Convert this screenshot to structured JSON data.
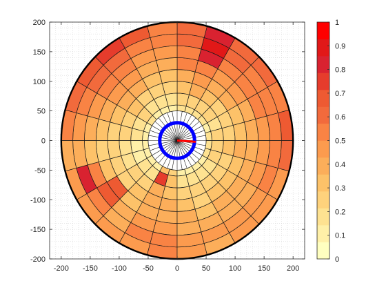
{
  "chart_data": {
    "type": "heatmap",
    "subtype": "polar-grid",
    "title": "",
    "xlabel": "",
    "ylabel": "",
    "xlim": [
      -220,
      220
    ],
    "ylim": [
      -200,
      200
    ],
    "xticks": [
      -200,
      -150,
      -100,
      -50,
      0,
      50,
      100,
      150,
      200
    ],
    "yticks": [
      -200,
      -150,
      -100,
      -50,
      0,
      50,
      100,
      150,
      200
    ],
    "grid": "minor dotted",
    "radial_edges": [
      60,
      80,
      100,
      120,
      140,
      160,
      180,
      200
    ],
    "sector_count": 24,
    "sector_start_angle_deg": 0,
    "sector_direction": "counterclockwise",
    "inner_radius": 50,
    "inner_spokes": 36,
    "center_ring_radius": 30,
    "center_ring_color": "#0000ff",
    "center_vector": {
      "angle_deg": -4,
      "length": 32,
      "color": "#ff0000"
    },
    "outer_boundary_radius": 200,
    "colorbar": {
      "min": 0,
      "max": 1,
      "ticks": [
        0,
        0.1,
        0.2,
        0.3,
        0.4,
        0.5,
        0.6,
        0.7,
        0.8,
        0.9,
        1
      ],
      "colors": [
        "#ffffc0",
        "#fff0a8",
        "#fee291",
        "#fed27c",
        "#fdc269",
        "#fcae5a",
        "#fc9b4e",
        "#f98344",
        "#f26a3c",
        "#ee5a32",
        "#e63c2c",
        "#d92230",
        "#e11818",
        "#ff0000"
      ],
      "location": "right"
    },
    "sector_values_by_ring": [
      [
        0.18,
        0.14,
        0.16,
        0.18,
        0.2,
        0.16,
        0.12,
        0.1,
        0.12,
        0.16,
        0.12,
        0.1,
        0.08,
        0.08,
        0.1,
        0.14,
        0.3,
        0.22,
        0.14,
        0.1,
        0.12,
        0.14,
        0.16,
        0.18
      ],
      [
        0.24,
        0.2,
        0.22,
        0.24,
        0.28,
        0.24,
        0.18,
        0.16,
        0.2,
        0.22,
        0.18,
        0.16,
        0.12,
        0.14,
        0.16,
        0.2,
        0.78,
        0.34,
        0.2,
        0.16,
        0.18,
        0.2,
        0.22,
        0.24
      ],
      [
        0.28,
        0.26,
        0.28,
        0.32,
        0.36,
        0.32,
        0.26,
        0.24,
        0.28,
        0.3,
        0.26,
        0.22,
        0.18,
        0.2,
        0.22,
        0.26,
        0.4,
        0.34,
        0.26,
        0.22,
        0.24,
        0.26,
        0.28,
        0.3
      ],
      [
        0.34,
        0.32,
        0.36,
        0.4,
        0.44,
        0.4,
        0.34,
        0.32,
        0.36,
        0.38,
        0.34,
        0.28,
        0.22,
        0.24,
        0.26,
        0.3,
        0.4,
        0.38,
        0.32,
        0.28,
        0.3,
        0.32,
        0.34,
        0.36
      ],
      [
        0.4,
        0.38,
        0.44,
        0.48,
        0.56,
        0.5,
        0.42,
        0.4,
        0.44,
        0.46,
        0.4,
        0.34,
        0.28,
        0.3,
        0.7,
        0.34,
        0.42,
        0.42,
        0.38,
        0.34,
        0.36,
        0.38,
        0.4,
        0.42
      ],
      [
        0.46,
        0.5,
        0.52,
        0.56,
        0.8,
        0.56,
        0.48,
        0.46,
        0.5,
        0.52,
        0.46,
        0.4,
        0.32,
        0.56,
        0.66,
        0.38,
        0.44,
        0.46,
        0.42,
        0.38,
        0.4,
        0.42,
        0.44,
        0.46
      ],
      [
        0.55,
        0.5,
        0.56,
        0.62,
        0.9,
        0.62,
        0.54,
        0.54,
        0.58,
        0.62,
        0.56,
        0.48,
        0.38,
        0.8,
        0.5,
        0.42,
        0.5,
        0.52,
        0.48,
        0.44,
        0.46,
        0.48,
        0.5,
        0.52
      ],
      [
        0.7,
        0.56,
        0.58,
        0.62,
        0.84,
        0.6,
        0.52,
        0.66,
        0.78,
        0.7,
        0.6,
        0.52,
        0.4,
        0.48,
        0.46,
        0.44,
        0.48,
        0.5,
        0.46,
        0.42,
        0.44,
        0.46,
        0.48,
        0.58
      ]
    ]
  }
}
